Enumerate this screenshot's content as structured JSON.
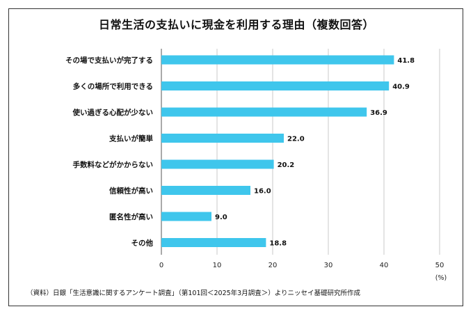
{
  "chart_data": {
    "type": "bar",
    "orientation": "horizontal",
    "title": "日常生活の支払いに現金を利用する理由（複数回答）",
    "categories": [
      "その場で支払いが完了する",
      "多くの場所で利用できる",
      "使い過ぎる心配が少ない",
      "支払いが簡単",
      "手数料などがかからない",
      "信頼性が高い",
      "匿名性が高い",
      "その他"
    ],
    "values": [
      41.8,
      40.9,
      36.9,
      22.0,
      20.2,
      16.0,
      9.0,
      18.8
    ],
    "value_labels": [
      "41.8",
      "40.9",
      "36.9",
      "22.0",
      "20.2",
      "16.0",
      "9.0",
      "18.8"
    ],
    "xlim": [
      0,
      50
    ],
    "xticks": [
      "0",
      "10",
      "20",
      "30",
      "40",
      "50"
    ],
    "unit_label": "(%)",
    "grid": "vertical",
    "bar_color": "#3fc6ec",
    "source": "（資料）日銀「生活意識に関するアンケート調査」（第101回＜2025年3月調査＞）よりニッセイ基礎研究所作成"
  }
}
